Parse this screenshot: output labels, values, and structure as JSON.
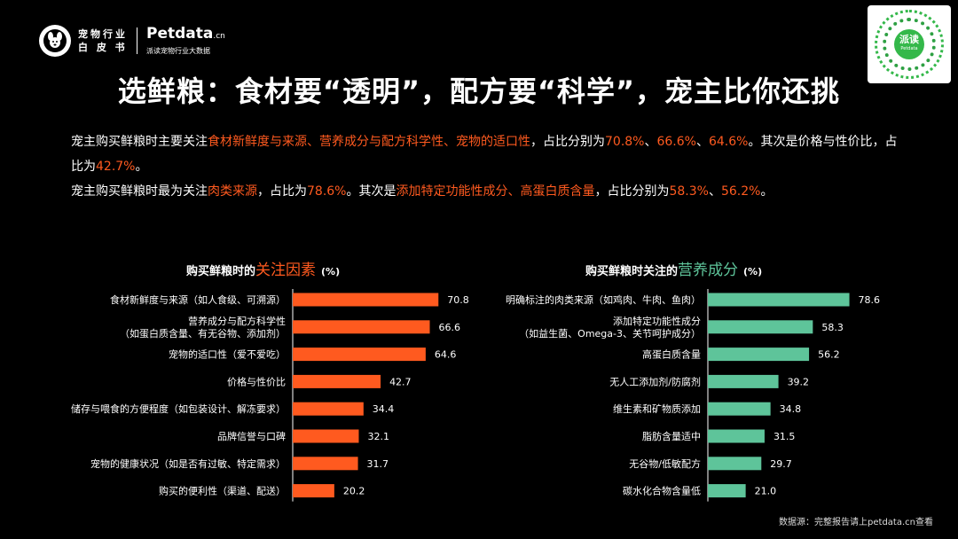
{
  "logo": {
    "line1": "宠物行业",
    "line2": "白 皮 书",
    "brand": "Petdata",
    "brand_suffix": ".cn",
    "subtitle": "派读宠物行业大数据"
  },
  "qr": {
    "label": "派读",
    "sublabel": "Petdata"
  },
  "title": "选鲜粮：食材要“透明”，配方要“科学”，宠主比你还挑",
  "paragraph1": {
    "t1": "宠主购买鲜粮时主要关注",
    "h1": "食材新鲜度与来源、营养成分与配方科学性、宠物的适口性",
    "t2": "，占比分别为",
    "h2": "70.8%",
    "t3": "、",
    "h3": "66.6%",
    "t4": "、",
    "h4": "64.6%",
    "t5": "。其次是价格与性价比，占比为",
    "h5": "42.7%",
    "t6": "。"
  },
  "paragraph2": {
    "t1": "宠主购买鲜粮时最为关注",
    "h1": "肉类来源",
    "t2": "，占比为",
    "h2": "78.6%",
    "t3": "。其次是",
    "h3": "添加特定功能性成分、高蛋白质含量",
    "t4": "，占比分别为",
    "h4": "58.3%",
    "t5": "、",
    "h5": "56.2%",
    "t6": "。"
  },
  "colors": {
    "orange": "#ff5a1f",
    "green": "#5ec49a"
  },
  "chart_data": [
    {
      "type": "bar",
      "orientation": "horizontal",
      "title_prefix": "购买鲜粮时的",
      "title_highlight": "关注因素",
      "unit": "(%)",
      "color": "#ff5a1f",
      "categories": [
        [
          "食材新鲜度与来源（如人食级、可溯源）"
        ],
        [
          "营养成分与配方科学性",
          "（如蛋白质含量、有无谷物、添加剂）"
        ],
        [
          "宠物的适口性（爱不爱吃）"
        ],
        [
          "价格与性价比"
        ],
        [
          "储存与喂食的方便程度（如包装设计、解冻要求）"
        ],
        [
          "品牌信誉与口碑"
        ],
        [
          "宠物的健康状况（如是否有过敏、特定需求）"
        ],
        [
          "购买的便利性（渠道、配送）"
        ]
      ],
      "values": [
        70.8,
        66.6,
        64.6,
        42.7,
        34.4,
        32.1,
        31.7,
        20.2
      ],
      "value_labels": [
        "70.8",
        "66.6",
        "64.6",
        "42.7",
        "34.4",
        "32.1",
        "31.7",
        "20.2"
      ]
    },
    {
      "type": "bar",
      "orientation": "horizontal",
      "title_prefix": "购买鲜粮时关注的",
      "title_highlight": "营养成分",
      "unit": "(%)",
      "color": "#5ec49a",
      "categories": [
        [
          "明确标注的肉类来源（如鸡肉、牛肉、鱼肉）"
        ],
        [
          "添加特定功能性成分",
          "（如益生菌、Omega-3、关节呵护成分）"
        ],
        [
          "高蛋白质含量"
        ],
        [
          "无人工添加剂/防腐剂"
        ],
        [
          "维生素和矿物质添加"
        ],
        [
          "脂肪含量适中"
        ],
        [
          "无谷物/低敏配方"
        ],
        [
          "碳水化合物含量低"
        ]
      ],
      "values": [
        78.6,
        58.3,
        56.2,
        39.2,
        34.8,
        31.5,
        29.7,
        21.0
      ],
      "value_labels": [
        "78.6",
        "58.3",
        "56.2",
        "39.2",
        "34.8",
        "31.5",
        "29.7",
        "21.0"
      ]
    }
  ],
  "source": "数据源：完整报告请上petdata.cn查看"
}
